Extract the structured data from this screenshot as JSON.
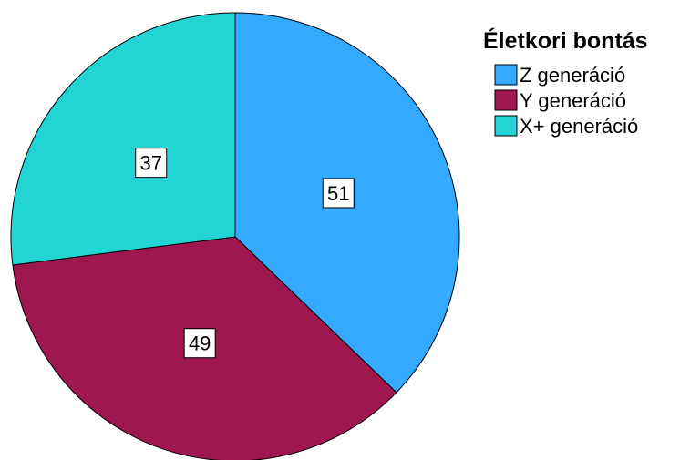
{
  "chart_data": {
    "type": "pie",
    "legend_title": "Életkori bontás",
    "legend_position": "top-right",
    "start_angle_deg": 0,
    "direction": "clockwise",
    "slices": [
      {
        "label": "Z generáció",
        "value": 51,
        "color": "#33aaff"
      },
      {
        "label": "Y generáció",
        "value": 49,
        "color": "#9e174e"
      },
      {
        "label": "X+ generáció",
        "value": 37,
        "color": "#22d4d4"
      }
    ]
  }
}
